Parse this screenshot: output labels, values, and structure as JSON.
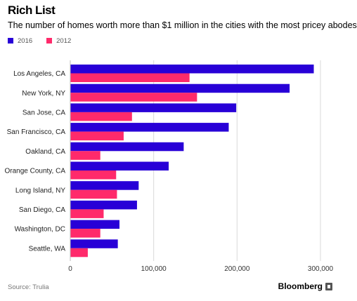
{
  "header": {
    "title": "Rich List",
    "subtitle": "The number of homes worth more than $1 million in the cities with the most pricey abodes"
  },
  "footer": {
    "source": "Source: Trulia",
    "brand": "Bloomberg"
  },
  "chart_data": {
    "type": "bar",
    "orientation": "horizontal",
    "categories": [
      "Los Angeles, CA",
      "New York, NY",
      "San Jose, CA",
      "San Francisco, CA",
      "Oakland, CA",
      "Orange County, CA",
      "Long Island, NY",
      "San Diego, CA",
      "Washington, DC",
      "Seattle, WA"
    ],
    "series": [
      {
        "name": "2016",
        "color": "#2800d7",
        "values": [
          292000,
          263000,
          199000,
          190000,
          136000,
          118000,
          82000,
          80000,
          59000,
          57000
        ]
      },
      {
        "name": "2012",
        "color": "#ff2a6b",
        "values": [
          143000,
          152000,
          74000,
          64000,
          36000,
          55000,
          56000,
          40000,
          36000,
          21000
        ]
      }
    ],
    "xlim": [
      0,
      300000
    ],
    "xticks": [
      0,
      100000,
      200000,
      300000
    ],
    "xtick_labels": [
      "0",
      "100,000",
      "200,000",
      "300,000"
    ],
    "grid": true,
    "legend_position": "top-left"
  }
}
